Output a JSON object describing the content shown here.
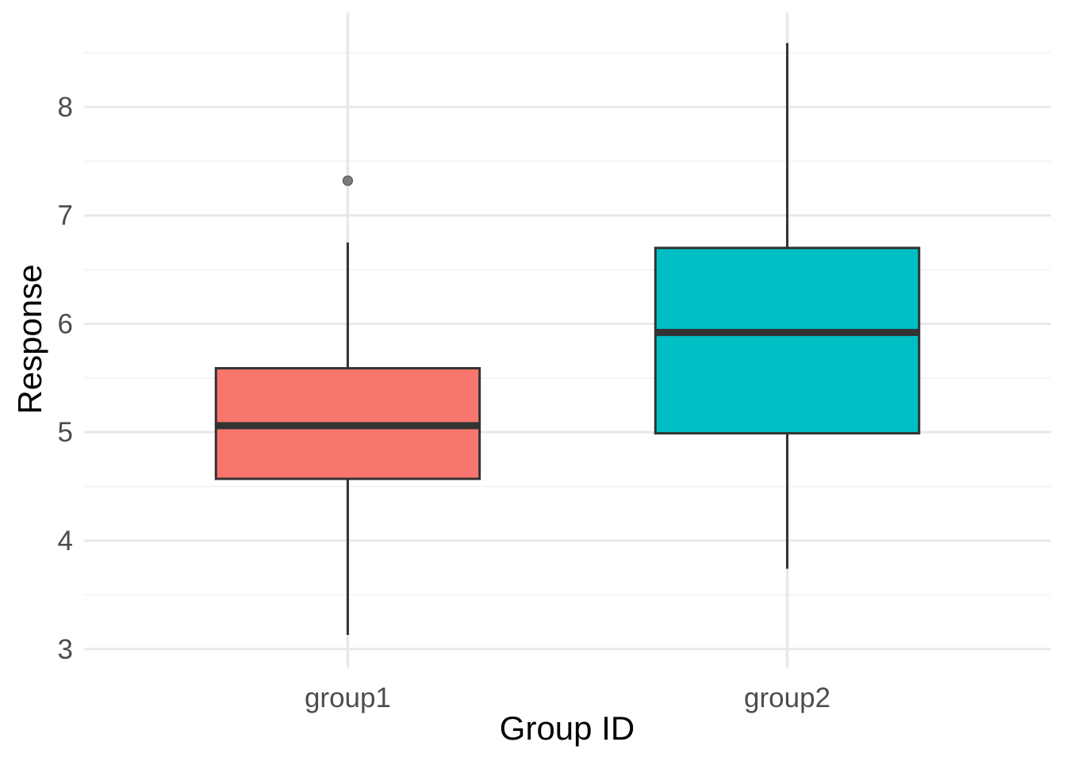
{
  "chart_data": {
    "type": "boxplot",
    "title": "",
    "xlabel": "Group ID",
    "ylabel": "Response",
    "categories": [
      "group1",
      "group2"
    ],
    "y_ticks": [
      3,
      4,
      5,
      6,
      7,
      8
    ],
    "y_minor_ticks": [
      3.5,
      4.5,
      5.5,
      6.5,
      7.5,
      8.5
    ],
    "ylim": [
      2.83,
      8.87
    ],
    "legend": "none",
    "grid": {
      "horizontal_major": true,
      "horizontal_minor": true,
      "vertical_major_at_categories": true
    },
    "series": [
      {
        "name": "group1",
        "fill": "#F8766D",
        "whisker_low": 3.13,
        "q1": 4.57,
        "median": 5.06,
        "q3": 5.59,
        "whisker_high": 6.75,
        "outliers": [
          7.32
        ]
      },
      {
        "name": "group2",
        "fill": "#00BFC4",
        "whisker_low": 3.74,
        "q1": 4.99,
        "median": 5.92,
        "q3": 6.7,
        "whisker_high": 8.59,
        "outliers": []
      }
    ],
    "colors": {
      "background": "#ffffff",
      "box_stroke": "#333333",
      "median_stroke": "#333333",
      "whisker_stroke": "#333333",
      "grid_major": "#e8e8e8",
      "grid_minor": "#f3f3f3",
      "outlier_fill": "#7c7c7c",
      "outlier_stroke": "#595959",
      "tick_text": "#4d4d4d",
      "axis_title_text": "#000000"
    }
  }
}
